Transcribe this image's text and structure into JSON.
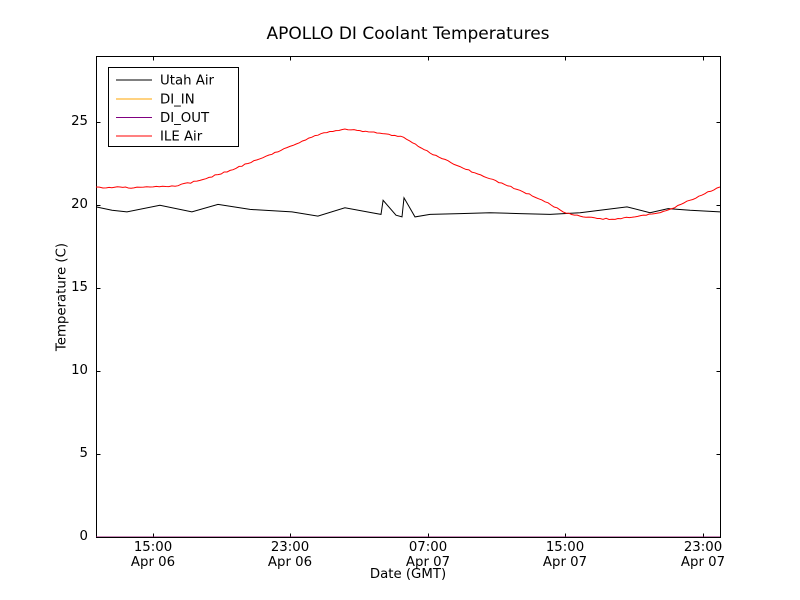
{
  "chart_data": {
    "type": "line",
    "title": "APOLLO DI Coolant Temperatures",
    "xlabel": "Date (GMT)",
    "ylabel": "Temperature (C)",
    "x_unit": "hours_since_Apr06_0000_GMT",
    "xlim": [
      11.7,
      48.0
    ],
    "ylim": [
      0,
      29
    ],
    "grid": false,
    "legend_position": "upper left",
    "yticks": [
      "0",
      "5",
      "10",
      "15",
      "20",
      "25"
    ],
    "ytick_values": [
      0,
      5,
      10,
      15,
      20,
      25
    ],
    "xticks": [
      {
        "value": 15,
        "time": "15:00",
        "date": "Apr 06"
      },
      {
        "value": 23,
        "time": "23:00",
        "date": "Apr 06"
      },
      {
        "value": 31,
        "time": "07:00",
        "date": "Apr 07"
      },
      {
        "value": 39,
        "time": "15:00",
        "date": "Apr 07"
      },
      {
        "value": 47,
        "time": "23:00",
        "date": "Apr 07"
      }
    ],
    "series": [
      {
        "name": "Utah Air",
        "color": "#000000",
        "jitter": false,
        "points": [
          [
            11.7,
            19.9
          ],
          [
            12.63,
            19.7
          ],
          [
            13.5,
            19.6
          ],
          [
            15.42,
            20.0
          ],
          [
            17.28,
            19.6
          ],
          [
            18.8,
            20.05
          ],
          [
            20.66,
            19.75
          ],
          [
            23.1,
            19.6
          ],
          [
            24.61,
            19.35
          ],
          [
            26.18,
            19.85
          ],
          [
            27.75,
            19.55
          ],
          [
            28.28,
            19.45
          ],
          [
            28.4,
            20.3
          ],
          [
            29.15,
            19.4
          ],
          [
            29.5,
            19.3
          ],
          [
            29.62,
            20.45
          ],
          [
            30.26,
            19.3
          ],
          [
            31.13,
            19.45
          ],
          [
            32.87,
            19.5
          ],
          [
            34.62,
            19.55
          ],
          [
            36.36,
            19.5
          ],
          [
            38.11,
            19.45
          ],
          [
            39.86,
            19.55
          ],
          [
            41.02,
            19.7
          ],
          [
            42.59,
            19.9
          ],
          [
            43.93,
            19.55
          ],
          [
            44.98,
            19.8
          ],
          [
            46.26,
            19.7
          ],
          [
            48.0,
            19.6
          ]
        ]
      },
      {
        "name": "DI_IN",
        "color": "#ffa500",
        "jitter": false,
        "points": [
          [
            11.7,
            0.0
          ],
          [
            48.0,
            0.0
          ]
        ]
      },
      {
        "name": "DI_OUT",
        "color": "#800080",
        "jitter": false,
        "points": [
          [
            11.7,
            0.0
          ],
          [
            48.0,
            0.0
          ]
        ]
      },
      {
        "name": "ILE Air",
        "color": "#ff0000",
        "jitter": true,
        "points": [
          [
            11.7,
            21.1
          ],
          [
            12.3,
            21.05
          ],
          [
            13.1,
            21.1
          ],
          [
            13.9,
            21.05
          ],
          [
            14.84,
            21.1
          ],
          [
            16.3,
            21.15
          ],
          [
            17.75,
            21.5
          ],
          [
            19.5,
            22.1
          ],
          [
            21.24,
            22.8
          ],
          [
            22.98,
            23.55
          ],
          [
            24.44,
            24.2
          ],
          [
            25.3,
            24.45
          ],
          [
            26.18,
            24.6
          ],
          [
            27.06,
            24.5
          ],
          [
            28.2,
            24.35
          ],
          [
            29.6,
            24.1
          ],
          [
            31.13,
            23.15
          ],
          [
            32.7,
            22.4
          ],
          [
            34.6,
            21.6
          ],
          [
            36.36,
            20.9
          ],
          [
            38.0,
            20.15
          ],
          [
            38.87,
            19.6
          ],
          [
            39.86,
            19.35
          ],
          [
            41.02,
            19.2
          ],
          [
            41.9,
            19.15
          ],
          [
            43.05,
            19.3
          ],
          [
            44.2,
            19.5
          ],
          [
            45.2,
            19.8
          ],
          [
            46.24,
            20.3
          ],
          [
            47.12,
            20.7
          ],
          [
            48.0,
            21.1
          ]
        ]
      }
    ]
  }
}
